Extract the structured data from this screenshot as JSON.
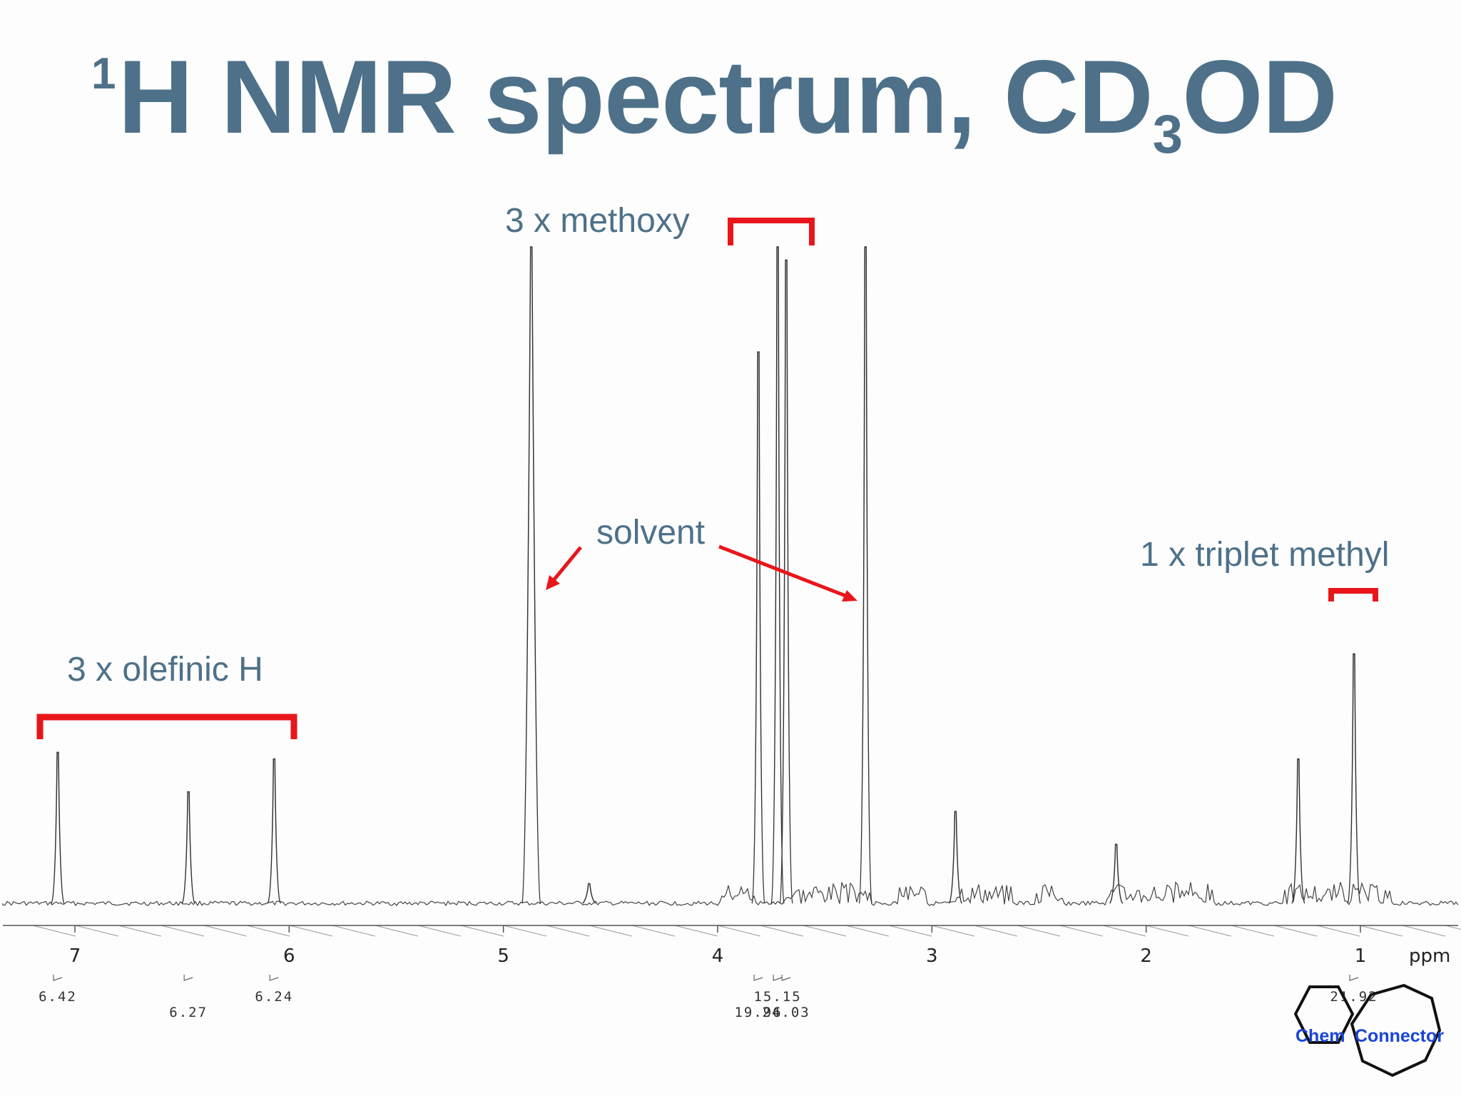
{
  "slide": {
    "title_main": "H NMR spectrum, CD",
    "title_superscript": "1",
    "title_subscript": "3",
    "title_tail": "OD"
  },
  "annotations": {
    "methoxy": "3 x methoxy",
    "solvent": "solvent",
    "olefinic": "3 x olefinic H",
    "triplet": "1 x triplet methyl"
  },
  "logo": {
    "left": "Chem",
    "right": "Connector"
  },
  "colors": {
    "title": "#4e7189",
    "bracket": "#e8161b",
    "spectrum": "#333333"
  },
  "chart_data": {
    "type": "line",
    "xlabel": "ppm",
    "xlim": [
      7.2,
      0.55
    ],
    "x_reversed": true,
    "ticks": [
      "7",
      "6",
      "5",
      "4",
      "3",
      "2",
      "1"
    ],
    "tick_values": [
      7,
      6,
      5,
      4,
      3,
      2,
      1
    ],
    "peaks": [
      {
        "ppm": 7.08,
        "height": 0.23
      },
      {
        "ppm": 6.47,
        "height": 0.17
      },
      {
        "ppm": 6.07,
        "height": 0.22
      },
      {
        "ppm": 4.87,
        "height": 1.0
      },
      {
        "ppm": 4.6,
        "height": 0.03
      },
      {
        "ppm": 3.81,
        "height": 0.84
      },
      {
        "ppm": 3.72,
        "height": 1.0
      },
      {
        "ppm": 3.68,
        "height": 0.98
      },
      {
        "ppm": 3.31,
        "height": 1.0
      },
      {
        "ppm": 2.89,
        "height": 0.14
      },
      {
        "ppm": 2.14,
        "height": 0.09
      },
      {
        "ppm": 1.29,
        "height": 0.22
      },
      {
        "ppm": 1.03,
        "height": 0.38
      }
    ],
    "integrals": [
      {
        "ppm": 7.08,
        "label": "6.42"
      },
      {
        "ppm": 6.47,
        "label": "6.27"
      },
      {
        "ppm": 6.07,
        "label": "6.24"
      },
      {
        "ppm": 3.81,
        "label": "19.96"
      },
      {
        "ppm": 3.72,
        "label": "15.15"
      },
      {
        "ppm": 3.68,
        "label": "24.03"
      },
      {
        "ppm": 1.03,
        "label": "21.92"
      }
    ]
  }
}
